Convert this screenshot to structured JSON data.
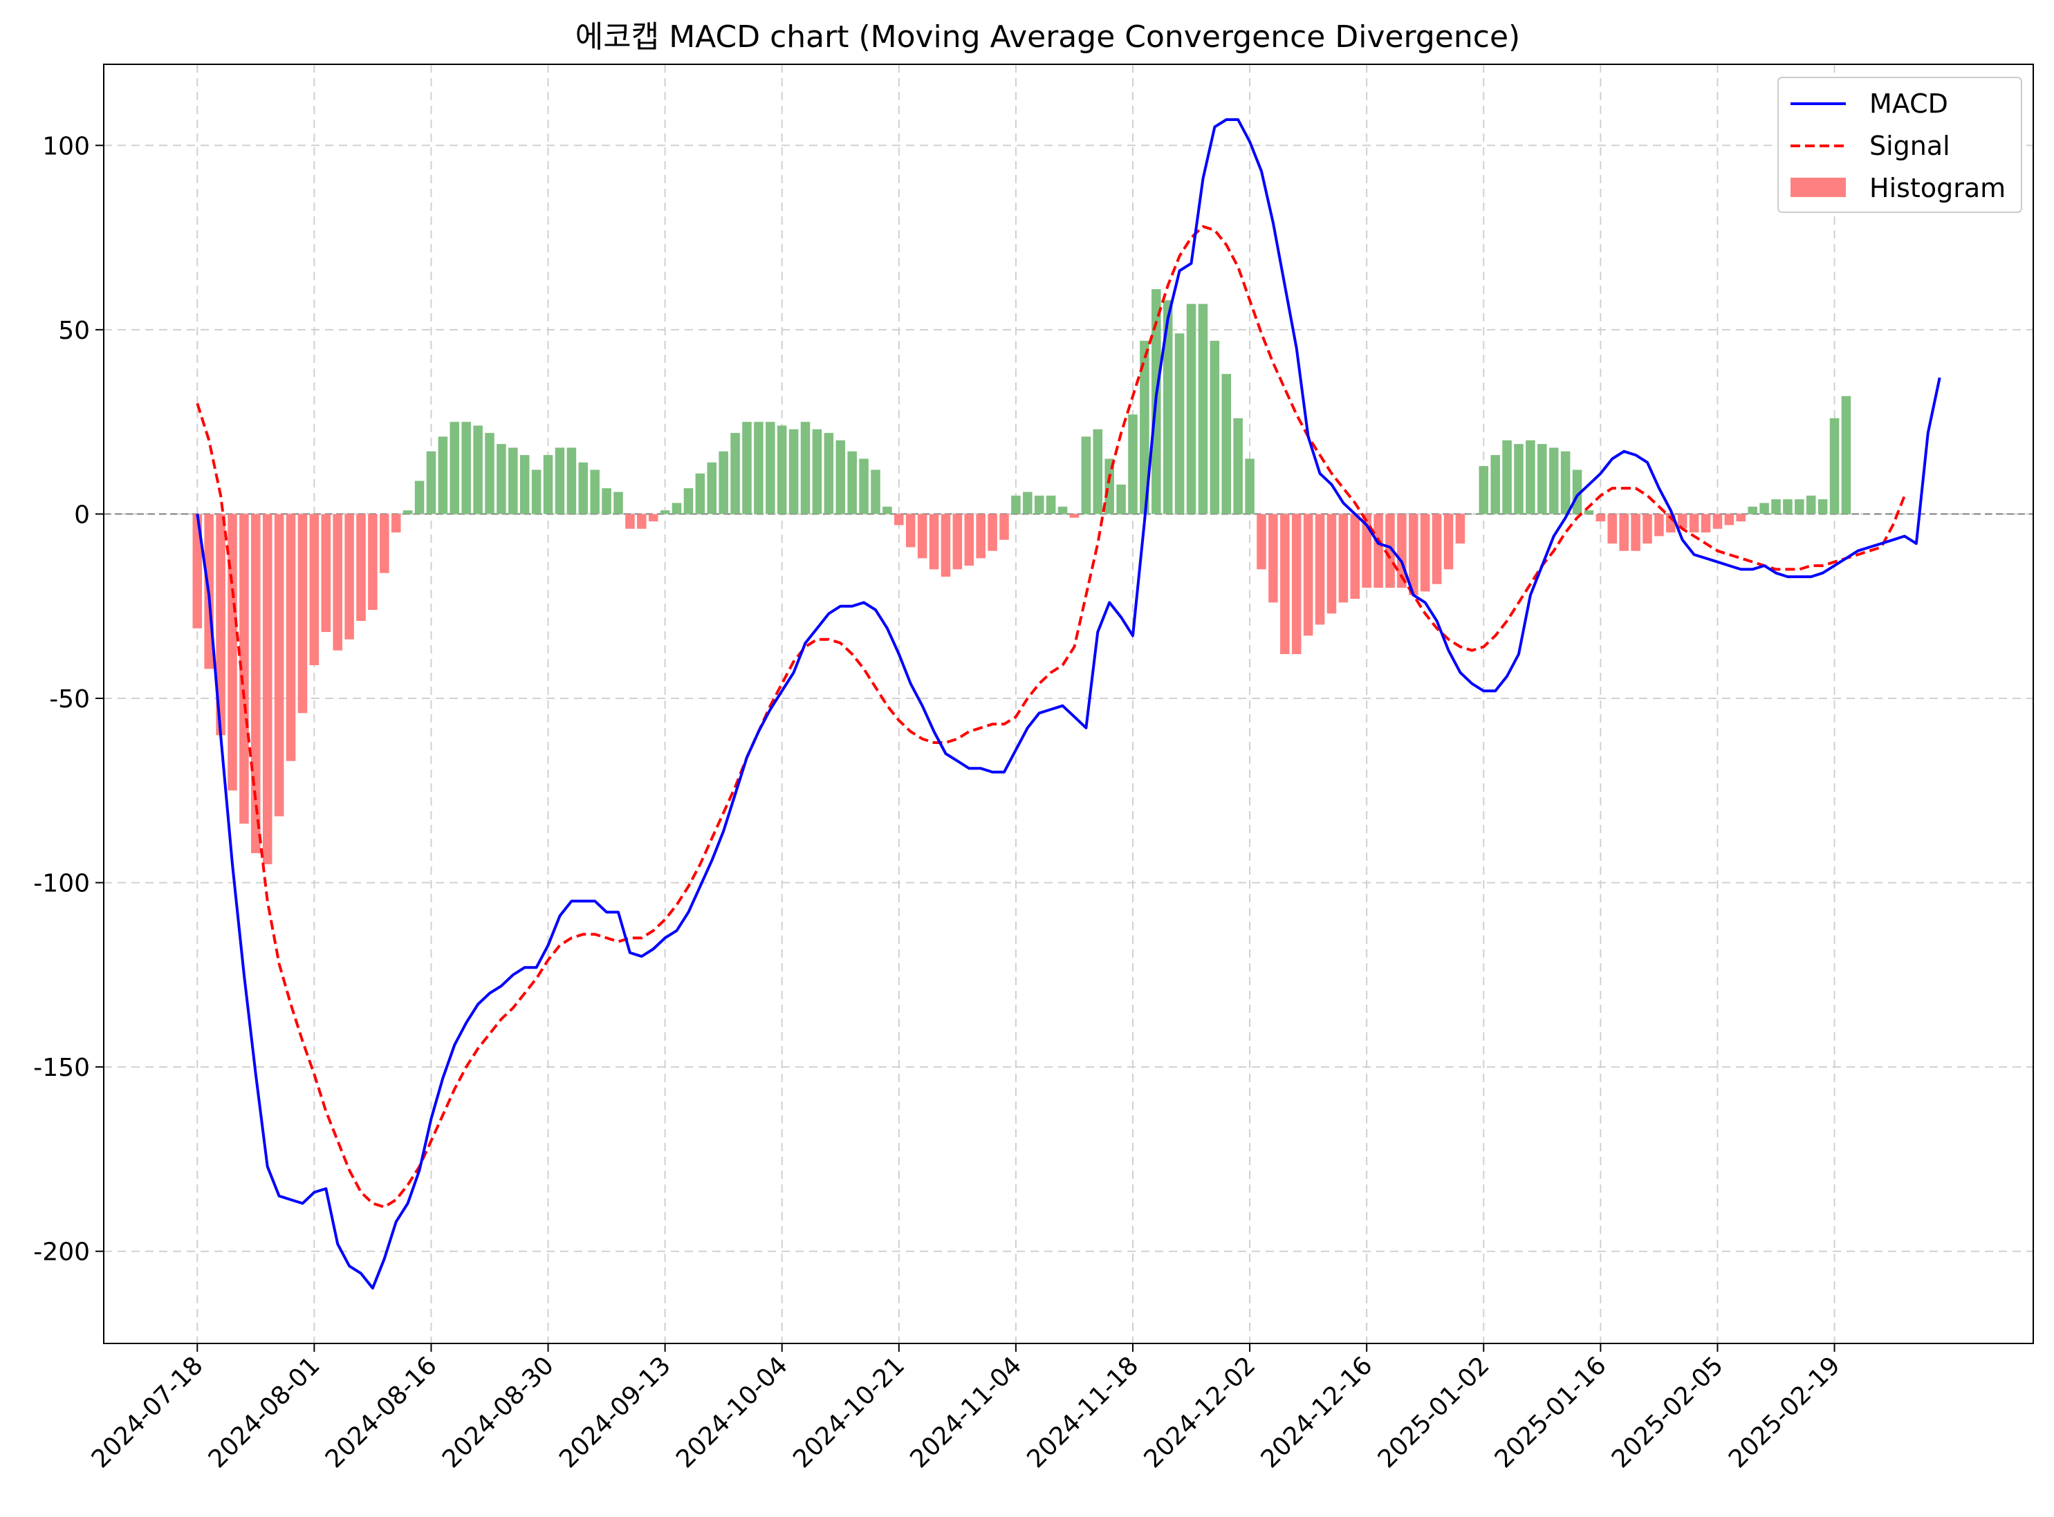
{
  "chart_data": {
    "type": "line+bar",
    "title": "에코캡 MACD chart (Moving Average Convergence Divergence)",
    "xlabel": "",
    "ylabel": "",
    "ylim": [
      -225,
      122
    ],
    "yticks": [
      100,
      50,
      0,
      -50,
      -100,
      -150,
      -200
    ],
    "ytick_labels": [
      "100",
      "50",
      "0",
      "-50",
      "-100",
      "-150",
      "-200"
    ],
    "x_index_range": [
      -8,
      157
    ],
    "xticks": [
      {
        "label": "2024-07-18",
        "index": 0
      },
      {
        "label": "2024-08-01",
        "index": 10
      },
      {
        "label": "2024-08-16",
        "index": 20
      },
      {
        "label": "2024-08-30",
        "index": 30
      },
      {
        "label": "2024-09-13",
        "index": 40
      },
      {
        "label": "2024-10-04",
        "index": 50
      },
      {
        "label": "2024-10-21",
        "index": 60
      },
      {
        "label": "2024-11-04",
        "index": 70
      },
      {
        "label": "2024-11-18",
        "index": 80
      },
      {
        "label": "2024-12-02",
        "index": 90
      },
      {
        "label": "2024-12-16",
        "index": 100
      },
      {
        "label": "2025-01-02",
        "index": 110
      },
      {
        "label": "2025-01-16",
        "index": 120
      },
      {
        "label": "2025-02-05",
        "index": 130
      },
      {
        "label": "2025-02-19",
        "index": 140
      }
    ],
    "grid": true,
    "legend_position": "top-right",
    "colors": {
      "macd": "#0000ff",
      "signal": "#ff0000",
      "hist_pos": "#7fbf7f",
      "hist_neg": "#ff8080",
      "zero_line": "#808080"
    },
    "series": [
      {
        "name": "MACD",
        "style": "solid",
        "values": [
          0,
          -22,
          -60,
          -95,
          -125,
          -152,
          -177,
          -185,
          -186,
          -187,
          -184,
          -183,
          -198,
          -204,
          -206,
          -210,
          -202,
          -192,
          -187,
          -178,
          -164,
          -153,
          -144,
          -138,
          -133,
          -130,
          -128,
          -125,
          -123,
          -123,
          -117,
          -109,
          -105,
          -105,
          -105,
          -108,
          -108,
          -119,
          -120,
          -118,
          -115,
          -113,
          -108,
          -101,
          -94,
          -86,
          -76,
          -66,
          -59,
          -53,
          -48,
          -43,
          -35,
          -31,
          -27,
          -25,
          -25,
          -24,
          -26,
          -31,
          -38,
          -46,
          -52,
          -59,
          -65,
          -67,
          -69,
          -69,
          -70,
          -70,
          -64,
          -58,
          -54,
          -53,
          -52,
          -55,
          -58,
          -32,
          -24,
          -28,
          -33,
          -2,
          32,
          53,
          66,
          68,
          91,
          105,
          107,
          107,
          101,
          93,
          79,
          62,
          45,
          21,
          11,
          8,
          3,
          0,
          -3,
          -8,
          -9,
          -13,
          -22,
          -24,
          -29,
          -37,
          -43,
          -46,
          -48,
          -48,
          -44,
          -38,
          -22,
          -14,
          -6,
          -1,
          5,
          8,
          11,
          15,
          17,
          16,
          14,
          7,
          1,
          -7,
          -11,
          -12,
          -13,
          -14,
          -15,
          -15,
          -14,
          -16,
          -17,
          -17,
          -17,
          -16,
          -14,
          -12,
          -10,
          -9,
          -8,
          -7,
          -6,
          -8,
          22,
          37
        ]
      },
      {
        "name": "Signal",
        "style": "dashed",
        "values": [
          30,
          20,
          5,
          -20,
          -50,
          -78,
          -105,
          -122,
          -133,
          -143,
          -152,
          -162,
          -170,
          -178,
          -184,
          -187,
          -188,
          -186,
          -182,
          -177,
          -170,
          -163,
          -156,
          -150,
          -145,
          -141,
          -137,
          -134,
          -130,
          -126,
          -121,
          -117,
          -115,
          -114,
          -114,
          -115,
          -116,
          -115,
          -115,
          -113,
          -110,
          -106,
          -101,
          -95,
          -88,
          -81,
          -74,
          -66,
          -59,
          -52,
          -46,
          -40,
          -36,
          -34,
          -34,
          -35,
          -38,
          -42,
          -47,
          -52,
          -56,
          -59,
          -61,
          -62,
          -62,
          -61,
          -59,
          -58,
          -57,
          -57,
          -55,
          -50,
          -46,
          -43,
          -41,
          -36,
          -22,
          -8,
          10,
          22,
          32,
          42,
          52,
          62,
          70,
          75,
          78,
          77,
          73,
          67,
          58,
          49,
          41,
          34,
          27,
          21,
          16,
          11,
          7,
          3,
          -2,
          -7,
          -12,
          -17,
          -22,
          -27,
          -31,
          -34,
          -36,
          -37,
          -36,
          -33,
          -29,
          -24,
          -19,
          -14,
          -10,
          -5,
          -1,
          2,
          5,
          7,
          7,
          7,
          5,
          2,
          -1,
          -4,
          -6,
          -8,
          -10,
          -11,
          -12,
          -13,
          -14,
          -15,
          -15,
          -15,
          -14,
          -14,
          -13,
          -12,
          -11,
          -10,
          -9,
          -3,
          5
        ]
      },
      {
        "name": "Histogram",
        "style": "bar",
        "values": [
          -31,
          -42,
          -60,
          -75,
          -84,
          -92,
          -95,
          -82,
          -67,
          -54,
          -41,
          -32,
          -37,
          -34,
          -29,
          -26,
          -16,
          -5,
          1,
          9,
          17,
          21,
          25,
          25,
          24,
          22,
          19,
          18,
          16,
          12,
          16,
          18,
          18,
          14,
          12,
          7,
          6,
          -4,
          -4,
          -2,
          1,
          3,
          7,
          11,
          14,
          17,
          22,
          25,
          25,
          25,
          24,
          23,
          25,
          23,
          22,
          20,
          17,
          15,
          12,
          2,
          -3,
          -9,
          -12,
          -15,
          -17,
          -15,
          -14,
          -12,
          -10,
          -7,
          5,
          6,
          5,
          5,
          2,
          -1,
          21,
          23,
          15,
          8,
          27,
          47,
          61,
          58,
          49,
          57,
          57,
          47,
          38,
          26,
          15,
          -15,
          -24,
          -38,
          -38,
          -33,
          -30,
          -27,
          -24,
          -23,
          -20,
          -20,
          -20,
          -20,
          -22,
          -21,
          -19,
          -15,
          -8,
          0,
          13,
          16,
          20,
          19,
          20,
          19,
          18,
          17,
          12,
          1,
          -2,
          -8,
          -10,
          -10,
          -8,
          -6,
          -5,
          -4,
          -5,
          -5,
          -4,
          -3,
          -2,
          2,
          3,
          4,
          4,
          4,
          5,
          4,
          26,
          32
        ]
      }
    ]
  }
}
